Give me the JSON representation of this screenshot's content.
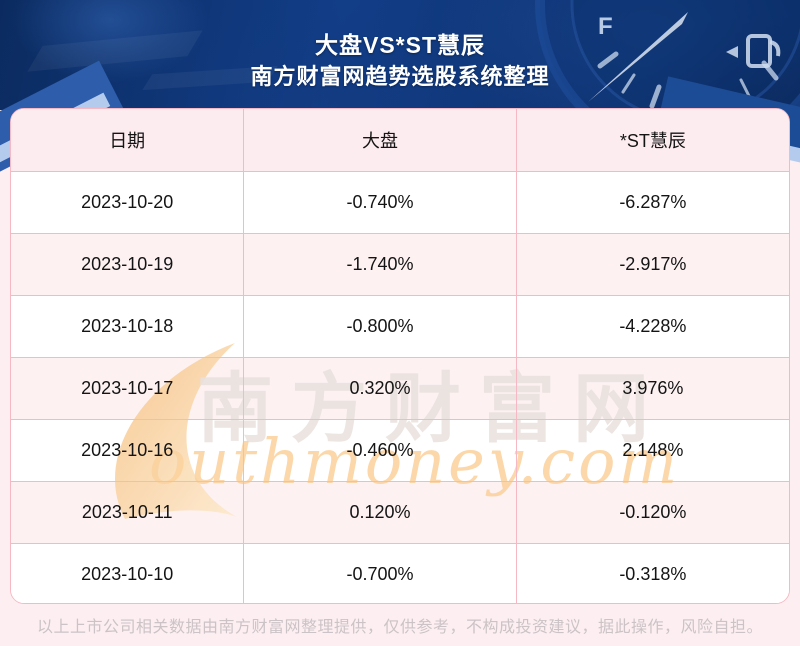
{
  "header": {
    "title": "大盘VS*ST慧辰",
    "subtitle": "南方财富网趋势选股系统整理",
    "gauge_label": "F"
  },
  "table": {
    "columns": [
      "日期",
      "大盘",
      "*ST慧辰"
    ],
    "rows": [
      [
        "2023-10-20",
        "-0.740%",
        "-6.287%"
      ],
      [
        "2023-10-19",
        "-1.740%",
        "-2.917%"
      ],
      [
        "2023-10-18",
        "-0.800%",
        "-4.228%"
      ],
      [
        "2023-10-17",
        "0.320%",
        "3.976%"
      ],
      [
        "2023-10-16",
        "-0.460%",
        "2.148%"
      ],
      [
        "2023-10-11",
        "0.120%",
        "-0.120%"
      ],
      [
        "2023-10-10",
        "-0.700%",
        "-0.318%"
      ]
    ]
  },
  "watermark": {
    "brand_cn": "南方财富网",
    "brand_en": "outhmoney.com"
  },
  "footer": {
    "disclaimer": "以上上市公司相关数据由南方财富网整理提供，仅供参考，不构成投资建议，据此操作，风险自担。"
  },
  "colors": {
    "banner_navy": "#123e88",
    "page_pink": "#fdeff1",
    "row_alt_pink": "#fdf1f2",
    "header_row_pink": "#fdecef",
    "table_border_pink": "#f6b9c3",
    "watermark_orange": "#fbd3a0",
    "watermark_gray": "#e9e1de",
    "footer_text": "#cbc3c6"
  },
  "chart_data": {
    "type": "table",
    "title": "大盘VS*ST慧辰",
    "subtitle": "南方财富网趋势选股系统整理",
    "columns": [
      "日期",
      "大盘",
      "*ST慧辰"
    ],
    "categories": [
      "2023-10-20",
      "2023-10-19",
      "2023-10-18",
      "2023-10-17",
      "2023-10-16",
      "2023-10-11",
      "2023-10-10"
    ],
    "series": [
      {
        "name": "大盘",
        "unit": "%",
        "values": [
          -0.74,
          -1.74,
          -0.8,
          0.32,
          -0.46,
          0.12,
          -0.7
        ]
      },
      {
        "name": "*ST慧辰",
        "unit": "%",
        "values": [
          -6.287,
          -2.917,
          -4.228,
          3.976,
          2.148,
          -0.12,
          -0.318
        ]
      }
    ],
    "layout": {
      "alternating_rows": true,
      "grid": true,
      "legend_position": "none"
    }
  }
}
